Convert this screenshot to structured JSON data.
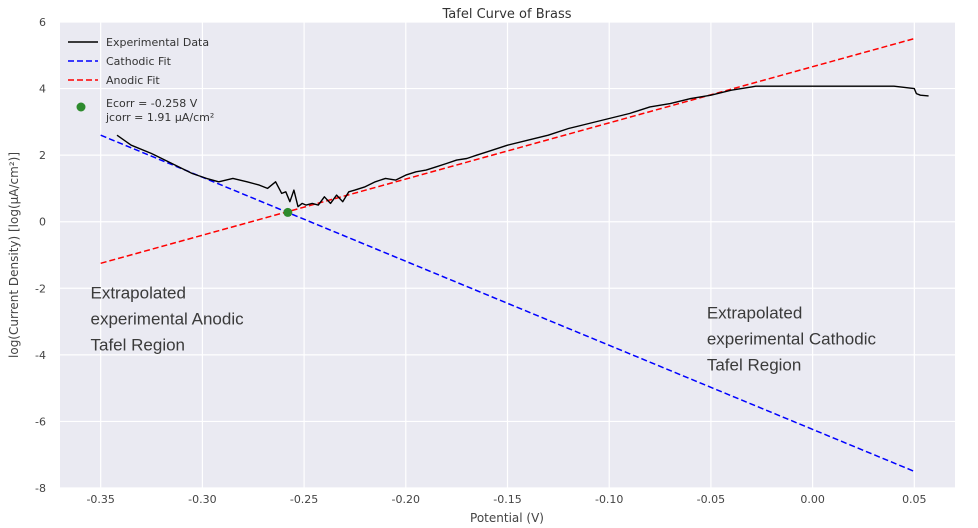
{
  "chart_data": {
    "type": "line",
    "title": "Tafel Curve of Brass",
    "xlabel": "Potential (V)",
    "ylabel": "log(Current Density) [log(µA/cm²)]",
    "xlim": [
      -0.37,
      0.07
    ],
    "ylim": [
      -8,
      6
    ],
    "xticks": [
      -0.35,
      -0.3,
      -0.25,
      -0.2,
      -0.15,
      -0.1,
      -0.05,
      0.0,
      0.05
    ],
    "xtick_labels": [
      "-0.35",
      "-0.30",
      "-0.25",
      "-0.20",
      "-0.15",
      "-0.10",
      "-0.05",
      "0.00",
      "0.05"
    ],
    "yticks": [
      -8,
      -6,
      -4,
      -2,
      0,
      2,
      4,
      6
    ],
    "ytick_labels": [
      "-8",
      "-6",
      "-4",
      "-2",
      "0",
      "2",
      "4",
      "6"
    ],
    "grid": true,
    "legend_position": "top-left",
    "series": [
      {
        "name": "Experimental Data",
        "style": "solid",
        "color": "#000000",
        "x": [
          -0.342,
          -0.335,
          -0.325,
          -0.315,
          -0.305,
          -0.298,
          -0.292,
          -0.285,
          -0.278,
          -0.272,
          -0.268,
          -0.264,
          -0.261,
          -0.259,
          -0.257,
          -0.255,
          -0.253,
          -0.251,
          -0.249,
          -0.246,
          -0.243,
          -0.24,
          -0.237,
          -0.234,
          -0.231,
          -0.228,
          -0.225,
          -0.22,
          -0.215,
          -0.21,
          -0.205,
          -0.2,
          -0.195,
          -0.19,
          -0.185,
          -0.18,
          -0.175,
          -0.17,
          -0.165,
          -0.16,
          -0.15,
          -0.14,
          -0.13,
          -0.12,
          -0.11,
          -0.1,
          -0.09,
          -0.08,
          -0.07,
          -0.06,
          -0.05,
          -0.04,
          -0.03,
          -0.028,
          -0.02,
          -0.01,
          0.0,
          0.02,
          0.04,
          0.05,
          0.051,
          0.053,
          0.057
        ],
        "y": [
          2.6,
          2.3,
          2.05,
          1.75,
          1.45,
          1.3,
          1.2,
          1.3,
          1.2,
          1.1,
          1.0,
          1.2,
          0.85,
          0.9,
          0.6,
          0.95,
          0.45,
          0.55,
          0.5,
          0.55,
          0.5,
          0.75,
          0.55,
          0.8,
          0.6,
          0.9,
          0.95,
          1.05,
          1.2,
          1.3,
          1.25,
          1.4,
          1.5,
          1.55,
          1.65,
          1.75,
          1.85,
          1.9,
          2.0,
          2.1,
          2.3,
          2.45,
          2.6,
          2.8,
          2.95,
          3.1,
          3.25,
          3.45,
          3.55,
          3.7,
          3.8,
          3.95,
          4.05,
          4.07,
          4.07,
          4.07,
          4.07,
          4.07,
          4.07,
          4.0,
          3.85,
          3.8,
          3.78
        ]
      },
      {
        "name": "Cathodic Fit",
        "style": "dashed",
        "color": "#0000ff",
        "x": [
          -0.35,
          0.05
        ],
        "y": [
          2.6,
          -7.5
        ]
      },
      {
        "name": "Anodic Fit",
        "style": "dashed",
        "color": "#ff0000",
        "x": [
          -0.35,
          0.05
        ],
        "y": [
          -1.25,
          5.5
        ]
      }
    ],
    "marker": {
      "x": -0.258,
      "y": 0.28,
      "color": "#2e8b2e",
      "legend_lines": [
        "Ecorr = -0.258 V",
        "jcorr = 1.91 µA/cm²"
      ]
    },
    "annotations": [
      {
        "lines": [
          "Extrapolated",
          "experimental Anodic",
          "Tafel Region"
        ],
        "x": -0.355,
        "y": -2.15
      },
      {
        "lines": [
          "Extrapolated",
          "experimental Cathodic",
          "Tafel Region"
        ],
        "x": -0.052,
        "y": -2.75
      }
    ]
  }
}
